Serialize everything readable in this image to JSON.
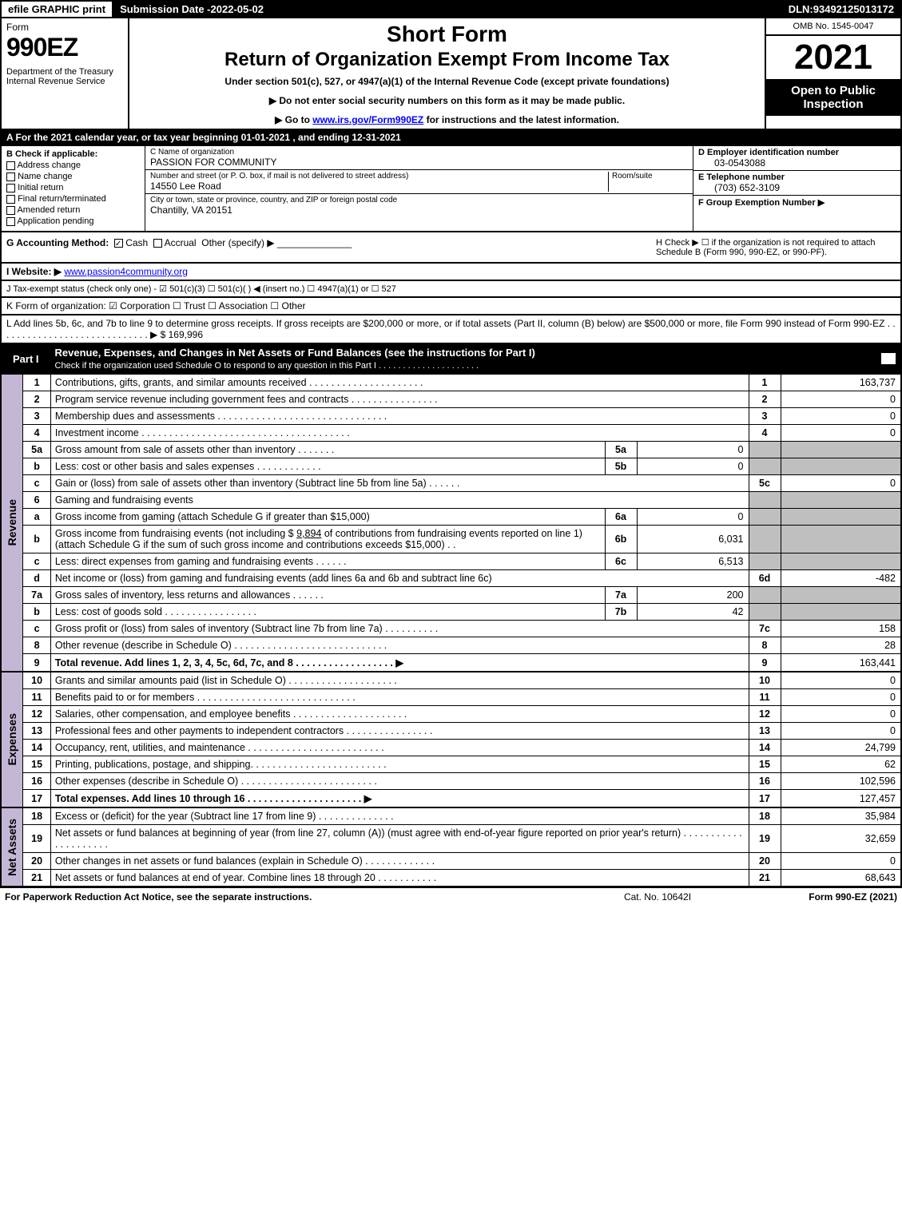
{
  "topbar": {
    "efile": "efile GRAPHIC print",
    "subdate_label": "Submission Date - ",
    "subdate": "2022-05-02",
    "dln_label": "DLN: ",
    "dln": "93492125013172"
  },
  "header": {
    "form": "Form",
    "formnum": "990EZ",
    "dept": "Department of the Treasury\nInternal Revenue Service",
    "title1": "Short Form",
    "title2": "Return of Organization Exempt From Income Tax",
    "under": "Under section 501(c), 527, or 4947(a)(1) of the Internal Revenue Code (except private foundations)",
    "warn1": "▶ Do not enter social security numbers on this form as it may be made public.",
    "warn2_pre": "▶ Go to ",
    "warn2_link": "www.irs.gov/Form990EZ",
    "warn2_post": " for instructions and the latest information.",
    "omb": "OMB No. 1545-0047",
    "year": "2021",
    "open": "Open to Public Inspection"
  },
  "A": "A  For the 2021 calendar year, or tax year beginning 01-01-2021 , and ending 12-31-2021",
  "B": {
    "label": "B  Check if applicable:",
    "opts": [
      "Address change",
      "Name change",
      "Initial return",
      "Final return/terminated",
      "Amended return",
      "Application pending"
    ]
  },
  "C": {
    "name_label": "C Name of organization",
    "name": "PASSION FOR COMMUNITY",
    "street_label": "Number and street (or P. O. box, if mail is not delivered to street address)",
    "street": "14550 Lee Road",
    "room_label": "Room/suite",
    "city_label": "City or town, state or province, country, and ZIP or foreign postal code",
    "city": "Chantilly, VA  20151"
  },
  "D": {
    "label": "D Employer identification number",
    "val": "03-0543088"
  },
  "E": {
    "label": "E Telephone number",
    "val": "(703) 652-3109"
  },
  "F": {
    "label": "F Group Exemption Number  ▶",
    "val": ""
  },
  "G": {
    "label": "G Accounting Method:",
    "cash": "Cash",
    "accrual": "Accrual",
    "other": "Other (specify) ▶"
  },
  "H": "H   Check ▶  ☐  if the organization is not required to attach Schedule B (Form 990, 990-EZ, or 990-PF).",
  "I": {
    "label": "I Website: ▶",
    "val": "www.passion4community.org"
  },
  "J": "J Tax-exempt status (check only one) -  ☑ 501(c)(3)  ☐ 501(c)(  ) ◀ (insert no.)  ☐ 4947(a)(1) or  ☐ 527",
  "K": "K Form of organization:   ☑ Corporation   ☐ Trust   ☐ Association   ☐ Other",
  "L": {
    "text": "L Add lines 5b, 6c, and 7b to line 9 to determine gross receipts. If gross receipts are $200,000 or more, or if total assets (Part II, column (B) below) are $500,000 or more, file Form 990 instead of Form 990-EZ . . . . . . . . . . . . . . . . . . . . . . . . . . . . .  ▶ $ ",
    "val": "169,996"
  },
  "partI": {
    "title": "Part I",
    "desc": "Revenue, Expenses, and Changes in Net Assets or Fund Balances (see the instructions for Part I)",
    "sub": "Check if the organization used Schedule O to respond to any question in this Part I . . . . . . . . . . . . . . . . . . . . ."
  },
  "sidelabels": {
    "revenue": "Revenue",
    "expenses": "Expenses",
    "netassets": "Net Assets"
  },
  "lines": {
    "l1": {
      "n": "1",
      "d": "Contributions, gifts, grants, and similar amounts received",
      "rn": "1",
      "a": "163,737"
    },
    "l2": {
      "n": "2",
      "d": "Program service revenue including government fees and contracts",
      "rn": "2",
      "a": "0"
    },
    "l3": {
      "n": "3",
      "d": "Membership dues and assessments",
      "rn": "3",
      "a": "0"
    },
    "l4": {
      "n": "4",
      "d": "Investment income",
      "rn": "4",
      "a": "0"
    },
    "l5a": {
      "n": "5a",
      "d": "Gross amount from sale of assets other than inventory",
      "sl": "5a",
      "sv": "0"
    },
    "l5b": {
      "n": "b",
      "d": "Less: cost or other basis and sales expenses",
      "sl": "5b",
      "sv": "0"
    },
    "l5c": {
      "n": "c",
      "d": "Gain or (loss) from sale of assets other than inventory (Subtract line 5b from line 5a)",
      "rn": "5c",
      "a": "0"
    },
    "l6": {
      "n": "6",
      "d": "Gaming and fundraising events"
    },
    "l6a": {
      "n": "a",
      "d": "Gross income from gaming (attach Schedule G if greater than $15,000)",
      "sl": "6a",
      "sv": "0"
    },
    "l6b": {
      "n": "b",
      "d1": "Gross income from fundraising events (not including $ ",
      "ins": "9,894",
      "d2": "    of contributions from fundraising events reported on line 1) (attach Schedule G if the sum of such gross income and contributions exceeds $15,000)",
      "sl": "6b",
      "sv": "6,031"
    },
    "l6c": {
      "n": "c",
      "d": "Less: direct expenses from gaming and fundraising events",
      "sl": "6c",
      "sv": "6,513"
    },
    "l6d": {
      "n": "d",
      "d": "Net income or (loss) from gaming and fundraising events (add lines 6a and 6b and subtract line 6c)",
      "rn": "6d",
      "a": "-482"
    },
    "l7a": {
      "n": "7a",
      "d": "Gross sales of inventory, less returns and allowances",
      "sl": "7a",
      "sv": "200"
    },
    "l7b": {
      "n": "b",
      "d": "Less: cost of goods sold",
      "sl": "7b",
      "sv": "42"
    },
    "l7c": {
      "n": "c",
      "d": "Gross profit or (loss) from sales of inventory (Subtract line 7b from line 7a)",
      "rn": "7c",
      "a": "158"
    },
    "l8": {
      "n": "8",
      "d": "Other revenue (describe in Schedule O)",
      "rn": "8",
      "a": "28"
    },
    "l9": {
      "n": "9",
      "d": "Total revenue. Add lines 1, 2, 3, 4, 5c, 6d, 7c, and 8   . . . . . . . . . . . . . . . . . .   ▶",
      "rn": "9",
      "a": "163,441"
    },
    "l10": {
      "n": "10",
      "d": "Grants and similar amounts paid (list in Schedule O)",
      "rn": "10",
      "a": "0"
    },
    "l11": {
      "n": "11",
      "d": "Benefits paid to or for members",
      "rn": "11",
      "a": "0"
    },
    "l12": {
      "n": "12",
      "d": "Salaries, other compensation, and employee benefits",
      "rn": "12",
      "a": "0"
    },
    "l13": {
      "n": "13",
      "d": "Professional fees and other payments to independent contractors",
      "rn": "13",
      "a": "0"
    },
    "l14": {
      "n": "14",
      "d": "Occupancy, rent, utilities, and maintenance",
      "rn": "14",
      "a": "24,799"
    },
    "l15": {
      "n": "15",
      "d": "Printing, publications, postage, and shipping.",
      "rn": "15",
      "a": "62"
    },
    "l16": {
      "n": "16",
      "d": "Other expenses (describe in Schedule O)",
      "rn": "16",
      "a": "102,596"
    },
    "l17": {
      "n": "17",
      "d": "Total expenses. Add lines 10 through 16     . . . . . . . . . . . . . . . . . . . . .   ▶",
      "rn": "17",
      "a": "127,457"
    },
    "l18": {
      "n": "18",
      "d": "Excess or (deficit) for the year (Subtract line 17 from line 9)",
      "rn": "18",
      "a": "35,984"
    },
    "l19": {
      "n": "19",
      "d": "Net assets or fund balances at beginning of year (from line 27, column (A)) (must agree with end-of-year figure reported on prior year's return)",
      "rn": "19",
      "a": "32,659"
    },
    "l20": {
      "n": "20",
      "d": "Other changes in net assets or fund balances (explain in Schedule O)",
      "rn": "20",
      "a": "0"
    },
    "l21": {
      "n": "21",
      "d": "Net assets or fund balances at end of year. Combine lines 18 through 20",
      "rn": "21",
      "a": "68,643"
    }
  },
  "footer": {
    "left": "For Paperwork Reduction Act Notice, see the separate instructions.",
    "mid": "Cat. No. 10642I",
    "right_pre": "Form ",
    "right_bold": "990-EZ",
    "right_post": " (2021)"
  },
  "colors": {
    "header_black": "#000000",
    "side_purple": "#c4b7d6",
    "grey_fill": "#bfbfbf",
    "link": "#0000ff"
  }
}
